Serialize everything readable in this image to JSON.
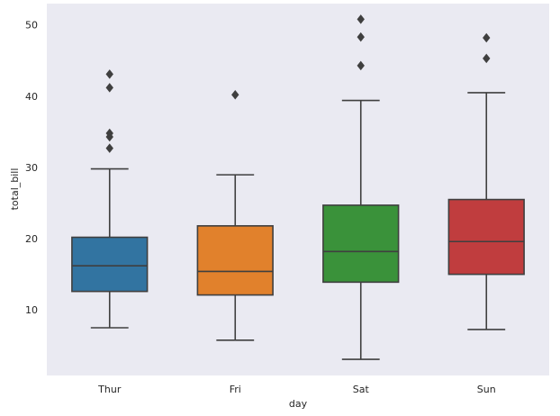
{
  "chart_data": {
    "type": "box",
    "xlabel": "day",
    "ylabel": "total_bill",
    "ylim": [
      0.8,
      53.0
    ],
    "yticks": [
      10,
      20,
      30,
      40,
      50
    ],
    "grid": false,
    "background": "#eaeaf2",
    "categories": [
      "Thur",
      "Fri",
      "Sat",
      "Sun"
    ],
    "boxes": [
      {
        "category": "Thur",
        "color": "#3274a1",
        "whisker_low": 7.5,
        "q1": 12.6,
        "median": 16.2,
        "q3": 20.2,
        "whisker_high": 29.8,
        "outliers": [
          32.7,
          34.3,
          34.8,
          41.2,
          43.1
        ]
      },
      {
        "category": "Fri",
        "color": "#e1812c",
        "whisker_low": 5.75,
        "q1": 12.1,
        "median": 15.4,
        "q3": 21.8,
        "whisker_high": 28.97,
        "outliers": [
          40.2
        ]
      },
      {
        "category": "Sat",
        "color": "#3a923a",
        "whisker_low": 3.07,
        "q1": 13.9,
        "median": 18.2,
        "q3": 24.7,
        "whisker_high": 39.4,
        "outliers": [
          44.3,
          48.3,
          50.8
        ]
      },
      {
        "category": "Sun",
        "color": "#c03d3e",
        "whisker_low": 7.25,
        "q1": 15.0,
        "median": 19.6,
        "q3": 25.5,
        "whisker_high": 40.5,
        "outliers": [
          45.3,
          48.2
        ]
      }
    ]
  }
}
